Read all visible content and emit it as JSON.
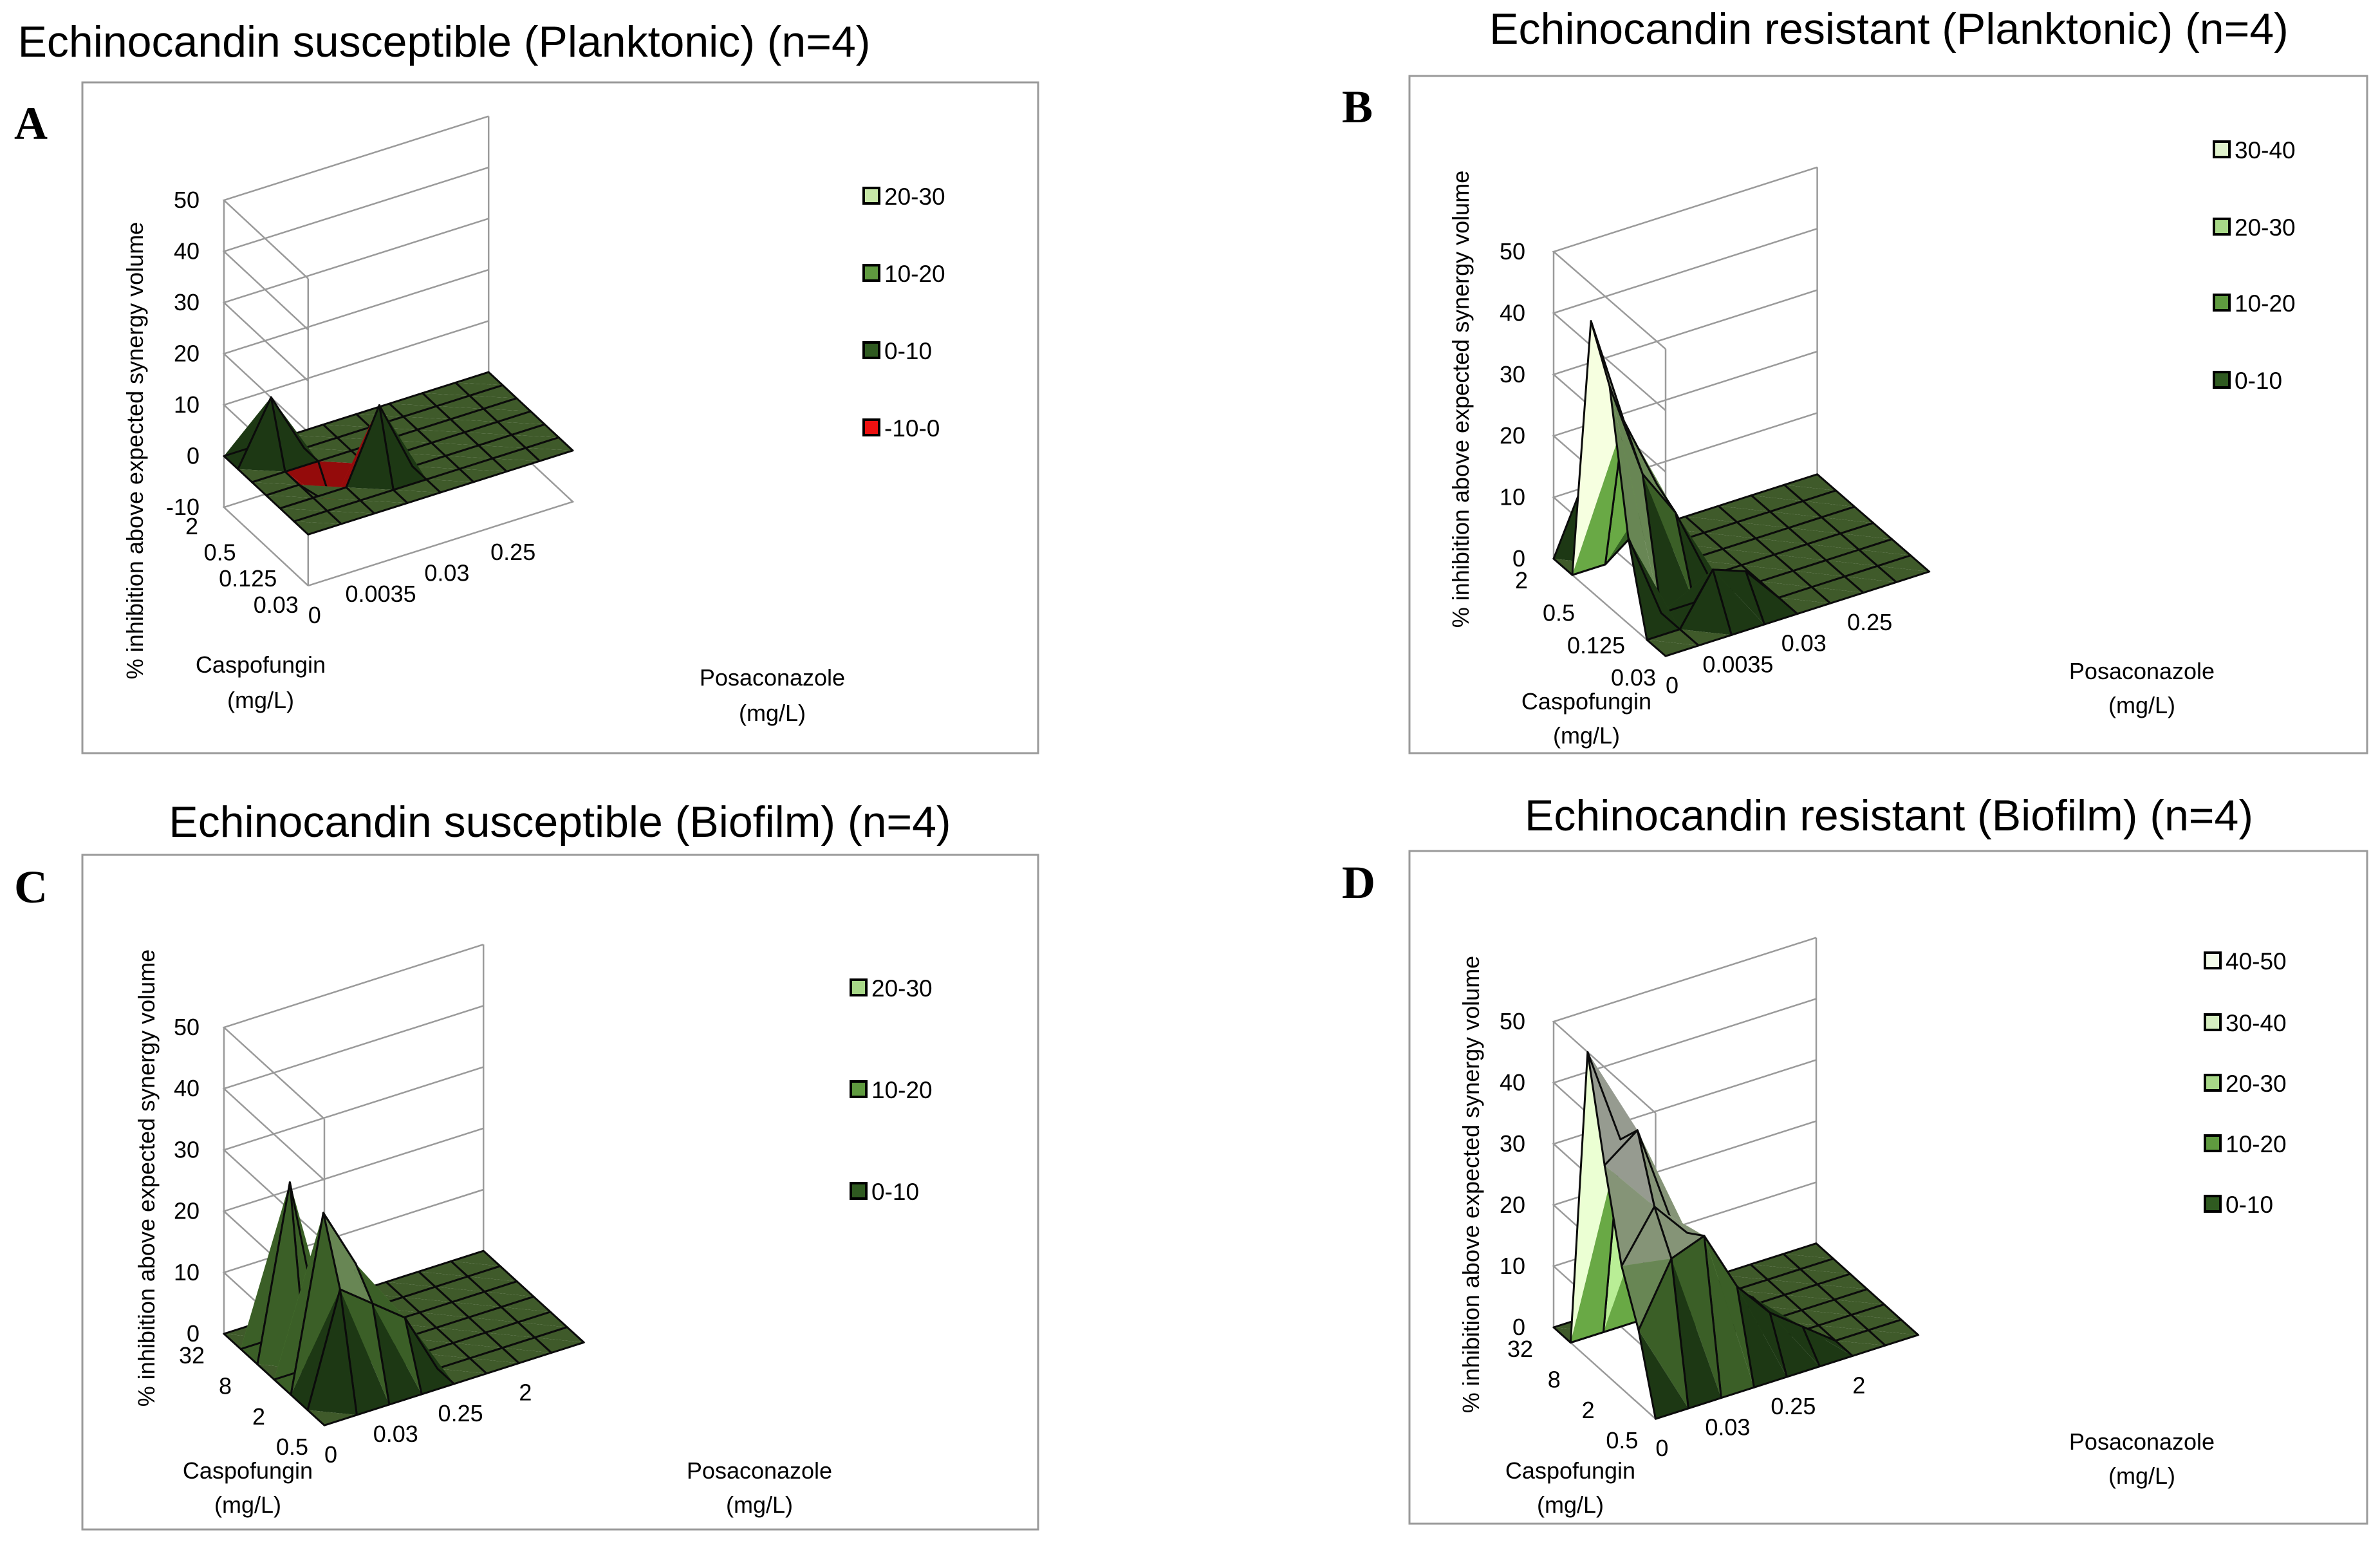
{
  "chart_data": [
    {
      "type": "surface3d",
      "panel": "A",
      "title": "Echinocandin susceptible (Planktonic) (n=4)",
      "zlabel": "% inhibition above expected synergy volume",
      "zticks": [
        "-10",
        "0",
        "10",
        "20",
        "30",
        "40",
        "50"
      ],
      "zlim": [
        -10,
        50
      ],
      "caspofungin_label": [
        "Caspofungin",
        "(mg/L)"
      ],
      "caspofungin_ticks": [
        "2",
        "0.5",
        "0.125",
        "0.03"
      ],
      "posaconazole_label": [
        "Posaconazole",
        "(mg/L)"
      ],
      "posaconazole_ticks": [
        "0",
        "0.0035",
        "0.03",
        "0.25"
      ],
      "legend": [
        "20-30",
        "10-20",
        "0-10",
        "-10-0"
      ],
      "legend_colors": [
        "#c8e8a8",
        "#5f9a3f",
        "#2f5a20",
        "#ee1111"
      ],
      "grid": {
        "rows": 7,
        "cols": 9,
        "values": [
          [
            0,
            0,
            0,
            0,
            0,
            0,
            0,
            0,
            0
          ],
          [
            0,
            12,
            0,
            0,
            0,
            0,
            0,
            0,
            0
          ],
          [
            0,
            0,
            0,
            0,
            0,
            0,
            0,
            0,
            0
          ],
          [
            0,
            0,
            -6,
            0,
            0,
            0,
            0,
            0,
            0
          ],
          [
            0,
            0,
            0,
            14,
            0,
            0,
            0,
            0,
            0
          ],
          [
            0,
            0,
            0,
            0,
            0,
            0,
            0,
            0,
            0
          ],
          [
            0,
            0,
            0,
            0,
            0,
            0,
            0,
            0,
            0
          ]
        ]
      }
    },
    {
      "type": "surface3d",
      "panel": "B",
      "title": "Echinocandin resistant (Planktonic) (n=4)",
      "zlabel": "% inhibition above expected synergy volume",
      "zticks": [
        "0",
        "10",
        "20",
        "30",
        "40",
        "50"
      ],
      "zlim": [
        0,
        50
      ],
      "caspofungin_label": [
        "Caspofungin",
        "(mg/L)"
      ],
      "caspofungin_ticks": [
        "2",
        "0.5",
        "0.125",
        "0.03"
      ],
      "posaconazole_label": [
        "Posaconazole",
        "(mg/L)"
      ],
      "posaconazole_ticks": [
        "0",
        "0.0035",
        "0.03",
        "0.25"
      ],
      "legend": [
        "30-40",
        "20-30",
        "10-20",
        "0-10"
      ],
      "legend_colors": [
        "#e0f2cc",
        "#a8d888",
        "#5f9a3f",
        "#2f5a20"
      ],
      "grid": {
        "rows": 7,
        "cols": 9,
        "values": [
          [
            0,
            12,
            0,
            0,
            0,
            0,
            0,
            0,
            0
          ],
          [
            0,
            0,
            4,
            0,
            0,
            0,
            0,
            0,
            0
          ],
          [
            44,
            26,
            14,
            0,
            0,
            0,
            0,
            0,
            0
          ],
          [
            36,
            20,
            12,
            0,
            0,
            0,
            0,
            0,
            0
          ],
          [
            14,
            0,
            0,
            0,
            0,
            0,
            0,
            0,
            0
          ],
          [
            0,
            0,
            8,
            6,
            0,
            0,
            0,
            0,
            0
          ],
          [
            0,
            0,
            0,
            0,
            0,
            0,
            0,
            0,
            0
          ]
        ]
      }
    },
    {
      "type": "surface3d",
      "panel": "C",
      "title": "Echinocandin susceptible (Biofilm) (n=4)",
      "zlabel": "% inhibition above expected synergy volume",
      "zticks": [
        "0",
        "10",
        "20",
        "30",
        "40",
        "50"
      ],
      "zlim": [
        0,
        50
      ],
      "caspofungin_label": [
        "Caspofungin",
        "(mg/L)"
      ],
      "caspofungin_ticks": [
        "32",
        "8",
        "2",
        "0.5"
      ],
      "posaconazole_label": [
        "Posaconazole",
        "(mg/L)"
      ],
      "posaconazole_ticks": [
        "0",
        "0.03",
        "0.25",
        "2"
      ],
      "legend": [
        "20-30",
        "10-20",
        "0-10"
      ],
      "legend_colors": [
        "#a8d888",
        "#5f9a3f",
        "#2f5a20"
      ],
      "grid": {
        "rows": 7,
        "cols": 9,
        "values": [
          [
            0,
            0,
            0,
            0,
            0,
            0,
            0,
            0,
            0
          ],
          [
            0,
            0,
            0,
            0,
            0,
            0,
            0,
            0,
            0
          ],
          [
            0,
            28,
            0,
            0,
            0,
            0,
            0,
            0,
            0
          ],
          [
            0,
            0,
            0,
            0,
            0,
            0,
            0,
            0,
            0
          ],
          [
            0,
            28,
            18,
            0,
            0,
            0,
            0,
            0,
            0
          ],
          [
            0,
            18,
            14,
            10,
            0,
            0,
            0,
            0,
            0
          ],
          [
            0,
            0,
            0,
            0,
            0,
            0,
            0,
            0,
            0
          ]
        ]
      }
    },
    {
      "type": "surface3d",
      "panel": "D",
      "title": "Echinocandin resistant (Biofilm) (n=4)",
      "zlabel": "% inhibition above expected synergy volume",
      "zticks": [
        "0",
        "10",
        "20",
        "30",
        "40",
        "50"
      ],
      "zlim": [
        0,
        50
      ],
      "caspofungin_label": [
        "Caspofungin",
        "(mg/L)"
      ],
      "caspofungin_ticks": [
        "32",
        "8",
        "2",
        "0.5"
      ],
      "posaconazole_label": [
        "Posaconazole",
        "(mg/L)"
      ],
      "posaconazole_ticks": [
        "0",
        "0.03",
        "0.25",
        "2"
      ],
      "legend": [
        "40-50",
        "30-40",
        "20-30",
        "10-20",
        "0-10"
      ],
      "legend_colors": [
        "#f2fae8",
        "#d6eec0",
        "#a8d888",
        "#5f9a3f",
        "#2f5a20"
      ],
      "grid": {
        "rows": 7,
        "cols": 9,
        "values": [
          [
            0,
            0,
            0,
            0,
            0,
            0,
            0,
            0,
            0
          ],
          [
            0,
            0,
            0,
            0,
            0,
            0,
            0,
            0,
            0
          ],
          [
            50,
            34,
            24,
            0,
            0,
            0,
            0,
            0,
            0
          ],
          [
            34,
            38,
            22,
            12,
            0,
            0,
            0,
            0,
            0
          ],
          [
            20,
            28,
            22,
            12,
            8,
            0,
            0,
            0,
            0
          ],
          [
            12,
            22,
            24,
            14,
            8,
            4,
            0,
            0,
            0
          ],
          [
            0,
            0,
            0,
            0,
            0,
            0,
            0,
            0,
            0
          ]
        ]
      }
    }
  ]
}
